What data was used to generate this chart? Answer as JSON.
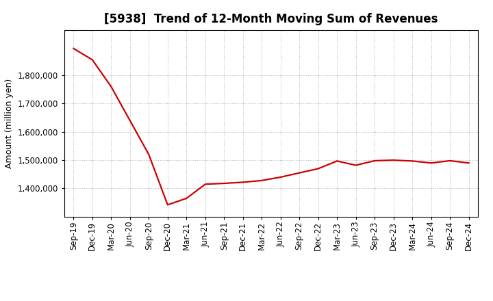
{
  "title": "[5938]  Trend of 12-Month Moving Sum of Revenues",
  "ylabel": "Amount (million yen)",
  "line_color": "#CC0000",
  "background_color": "#ffffff",
  "plot_bg_color": "#ffffff",
  "grid_color": "#b0b0b0",
  "x_labels": [
    "Sep-19",
    "Dec-19",
    "Mar-20",
    "Jun-20",
    "Sep-20",
    "Dec-20",
    "Mar-21",
    "Jun-21",
    "Sep-21",
    "Dec-21",
    "Mar-22",
    "Jun-22",
    "Sep-22",
    "Dec-22",
    "Mar-23",
    "Jun-23",
    "Sep-23",
    "Dec-23",
    "Mar-24",
    "Jun-24",
    "Sep-24",
    "Dec-24"
  ],
  "y_values": [
    1895000,
    1855000,
    1760000,
    1640000,
    1520000,
    1342000,
    1365000,
    1415000,
    1418000,
    1422000,
    1428000,
    1440000,
    1455000,
    1470000,
    1497000,
    1482000,
    1498000,
    1500000,
    1497000,
    1490000,
    1498000,
    1490000
  ],
  "ylim_min": 1300000,
  "ylim_max": 1960000,
  "ytick_values": [
    1400000,
    1500000,
    1600000,
    1700000,
    1800000
  ],
  "line_width": 1.6,
  "title_fontsize": 12,
  "axis_fontsize": 9,
  "tick_fontsize": 8.5
}
